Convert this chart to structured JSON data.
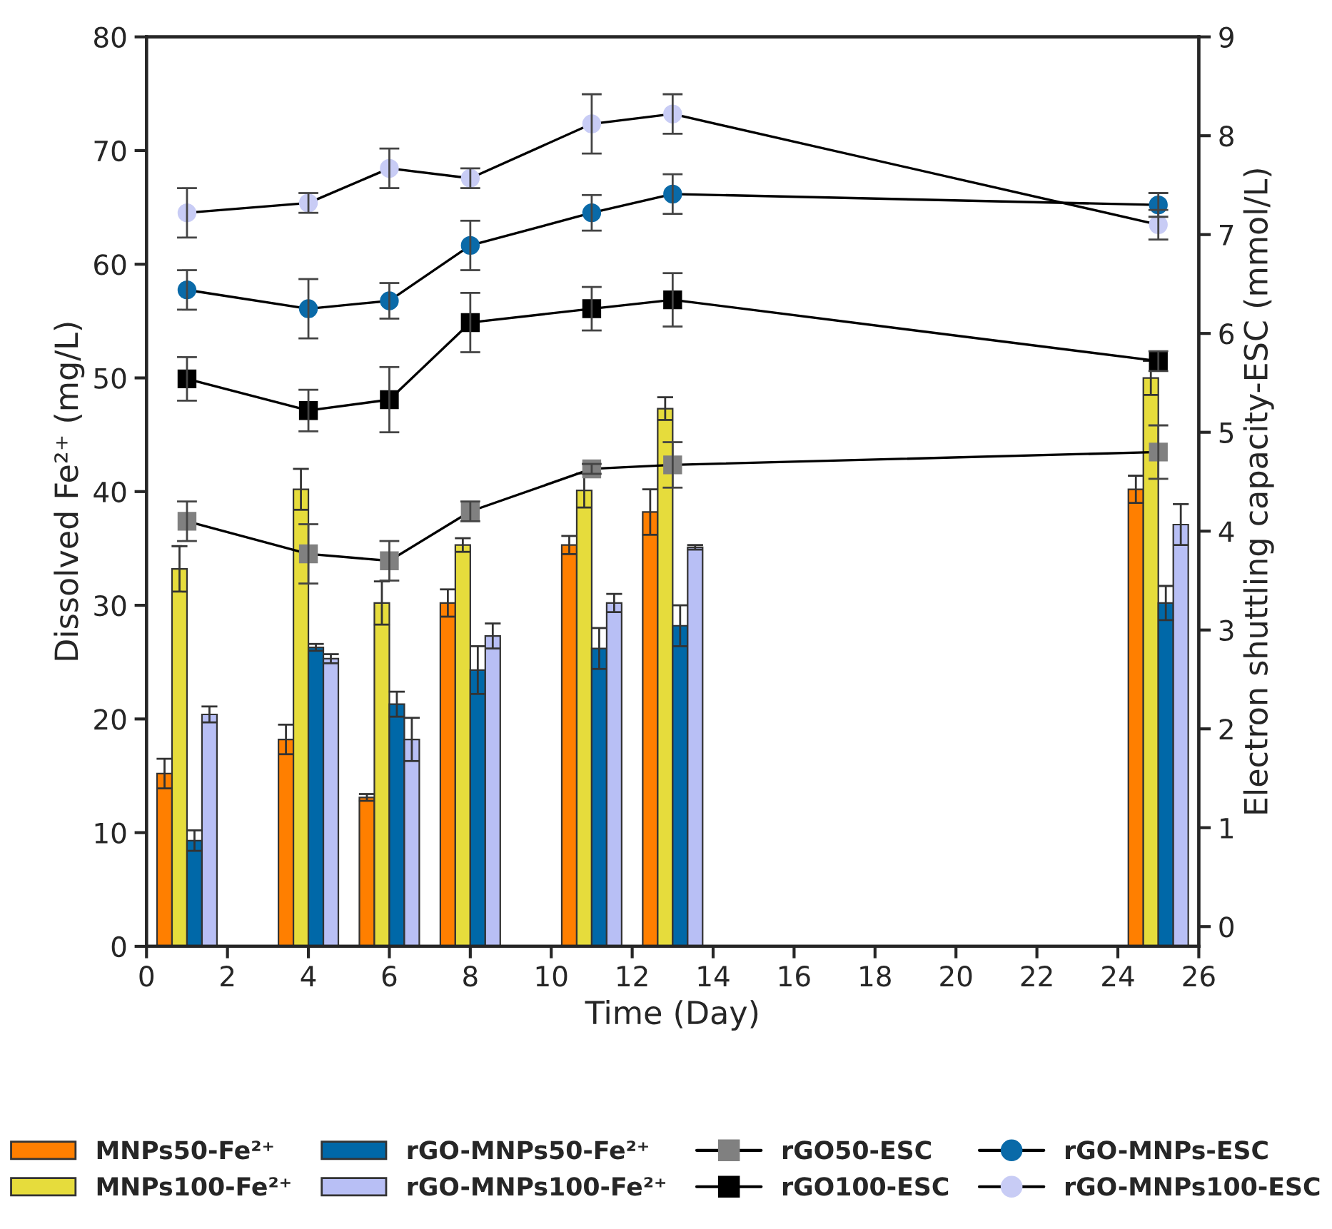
{
  "chart_data": {
    "type": "bar",
    "xlabel": "Time (Day)",
    "ylabel": "Dissolved Fe²⁺ (mg/L)",
    "y2label": "Electron shuttling capacity-ESC (mmol/L)",
    "x": [
      1,
      4,
      6,
      8,
      11,
      13,
      25
    ],
    "xlim": [
      0,
      26
    ],
    "xticks": [
      0,
      2,
      4,
      6,
      8,
      10,
      12,
      14,
      16,
      18,
      20,
      22,
      24,
      26
    ],
    "ylim": [
      0,
      80
    ],
    "yticks": [
      0,
      10,
      20,
      30,
      40,
      50,
      60,
      70,
      80
    ],
    "y2lim": [
      -0.2,
      9
    ],
    "y2ticks": [
      0,
      1,
      2,
      3,
      4,
      5,
      6,
      7,
      8,
      9
    ],
    "grid": false,
    "legend": "bottom",
    "series": [
      {
        "name": "MNPs50-Fe²⁺",
        "color": "#ff7f00",
        "values": [
          15.2,
          18.2,
          13.1,
          30.2,
          35.3,
          38.2,
          40.2
        ],
        "errors": [
          1.3,
          1.3,
          0.3,
          1.2,
          0.8,
          2.0,
          1.2
        ]
      },
      {
        "name": "MNPs100-Fe²⁺",
        "color": "#e6dc3c",
        "values": [
          33.2,
          40.2,
          30.2,
          35.3,
          40.1,
          47.3,
          50.0
        ],
        "errors": [
          2.0,
          1.8,
          1.9,
          0.6,
          1.5,
          1.0,
          1.5
        ]
      },
      {
        "name": "rGO-MNPs50-Fe²⁺",
        "color": "#0068a8",
        "values": [
          9.3,
          26.3,
          21.3,
          24.3,
          26.2,
          28.2,
          30.2
        ],
        "errors": [
          0.9,
          0.3,
          1.1,
          2.1,
          1.8,
          1.8,
          1.5
        ]
      },
      {
        "name": "rGO-MNPs100-Fe²⁺",
        "color": "#b8bff5",
        "values": [
          20.4,
          25.3,
          18.2,
          27.3,
          30.2,
          35.1,
          37.1
        ],
        "errors": [
          0.7,
          0.4,
          1.9,
          1.1,
          0.8,
          0.2,
          1.8
        ]
      },
      {
        "name": "rGO50-ESC",
        "type": "line",
        "axis": "y2",
        "marker": "square",
        "color": "#808080",
        "values": [
          4.1,
          3.77,
          3.7,
          4.2,
          4.63,
          4.67,
          4.8
        ],
        "errors": [
          0.2,
          0.3,
          0.2,
          0.1,
          0.05,
          0.23,
          0.27
        ]
      },
      {
        "name": "rGO100-ESC",
        "type": "line",
        "axis": "y2",
        "marker": "square",
        "color": "#000000",
        "values": [
          5.54,
          5.22,
          5.33,
          6.11,
          6.25,
          6.34,
          5.72
        ],
        "errors": [
          0.22,
          0.21,
          0.33,
          0.3,
          0.22,
          0.27,
          0.1
        ]
      },
      {
        "name": "rGO-MNPs-ESC",
        "type": "line",
        "axis": "y2",
        "marker": "circle",
        "color": "#0a6aa8",
        "values": [
          6.44,
          6.25,
          6.33,
          6.89,
          7.22,
          7.41,
          7.3
        ],
        "errors": [
          0.2,
          0.3,
          0.18,
          0.25,
          0.18,
          0.2,
          0.12
        ]
      },
      {
        "name": "rGO-MNPs100-ESC",
        "type": "line",
        "axis": "y2",
        "marker": "circle",
        "color": "#c8ccf5",
        "values": [
          7.22,
          7.32,
          7.67,
          7.57,
          8.12,
          8.22,
          7.1
        ],
        "errors": [
          0.25,
          0.1,
          0.2,
          0.1,
          0.3,
          0.2,
          0.15
        ]
      }
    ]
  }
}
